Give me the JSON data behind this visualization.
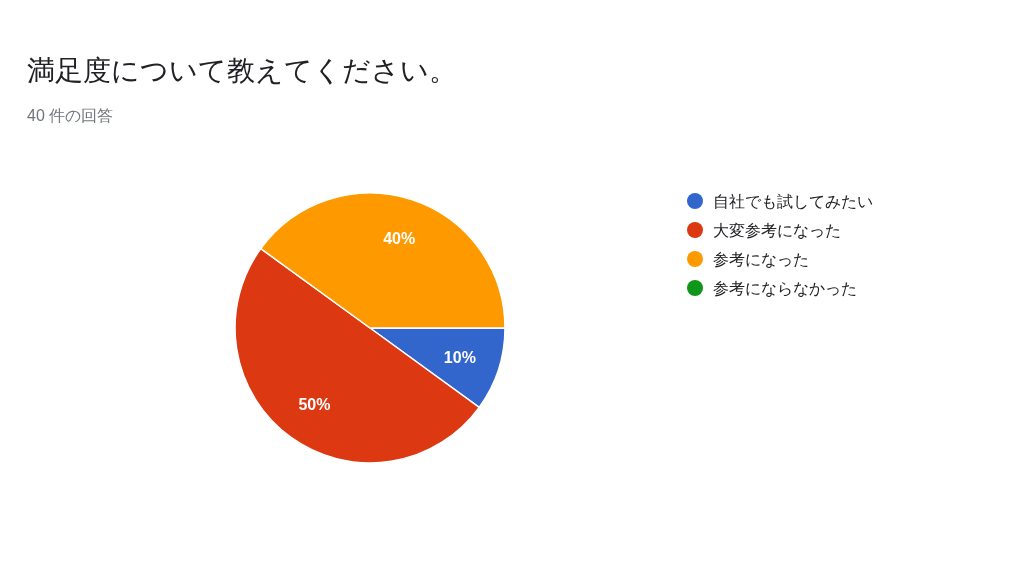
{
  "chart_data": {
    "type": "pie",
    "title": "満足度について教えてください。",
    "subtitle": "40 件の回答",
    "categories": [
      "自社でも試してみたい",
      "大変参考になった",
      "参考になった",
      "参考にならなかった"
    ],
    "values": [
      10,
      50,
      40,
      0
    ],
    "colors": [
      "#3366cc",
      "#dc3912",
      "#ff9900",
      "#109618"
    ],
    "value_labels": [
      "10%",
      "50%",
      "40%",
      null
    ],
    "legend": "right"
  }
}
